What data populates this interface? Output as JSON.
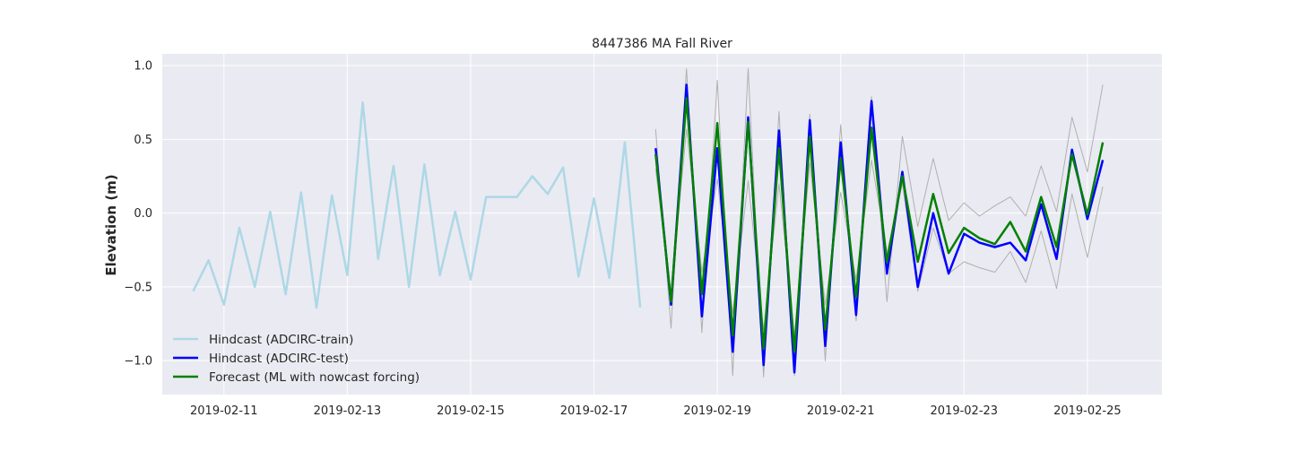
{
  "chart_data": {
    "type": "line",
    "title": "8447386 MA Fall River",
    "xlabel": "",
    "ylabel": "Elevation (m)",
    "x_ticks": [
      "2019-02-11",
      "2019-02-13",
      "2019-02-15",
      "2019-02-17",
      "2019-02-19",
      "2019-02-21",
      "2019-02-23",
      "2019-02-25"
    ],
    "y_ticks": [
      "−1.0",
      "−0.5",
      "0.0",
      "0.5",
      "1.0"
    ],
    "xlim": [
      "2019-02-10T00:00",
      "2019-02-26T05:00"
    ],
    "ylim": [
      -1.23,
      1.08
    ],
    "grid": true,
    "legend_position": "lower-left",
    "series": [
      {
        "name": "Hindcast (ADCIRC-train)",
        "color": "#add8e6",
        "x": [
          "2019-02-10T12:00",
          "2019-02-10T18:00",
          "2019-02-11T00:00",
          "2019-02-11T06:00",
          "2019-02-11T12:00",
          "2019-02-11T18:00",
          "2019-02-12T00:00",
          "2019-02-12T06:00",
          "2019-02-12T12:00",
          "2019-02-12T18:00",
          "2019-02-13T00:00",
          "2019-02-13T06:00",
          "2019-02-13T12:00",
          "2019-02-13T18:00",
          "2019-02-14T00:00",
          "2019-02-14T06:00",
          "2019-02-14T12:00",
          "2019-02-14T18:00",
          "2019-02-15T00:00",
          "2019-02-15T06:00",
          "2019-02-15T12:00",
          "2019-02-15T18:00",
          "2019-02-16T00:00",
          "2019-02-16T06:00",
          "2019-02-16T12:00",
          "2019-02-16T18:00",
          "2019-02-17T00:00",
          "2019-02-17T06:00",
          "2019-02-17T12:00",
          "2019-02-17T18:00"
        ],
        "values": [
          -0.53,
          -0.32,
          -0.62,
          -0.1,
          -0.5,
          0.01,
          -0.55,
          0.14,
          -0.64,
          0.12,
          -0.42,
          0.75,
          -0.31,
          0.32,
          -0.5,
          0.33,
          -0.42,
          0.01,
          -0.45,
          0.11,
          0.11,
          0.11,
          0.25,
          0.13,
          0.31,
          -0.43,
          0.1,
          -0.44,
          0.48,
          -0.64
        ]
      },
      {
        "name": "Hindcast (ADCIRC-test)",
        "color": "#0000ff",
        "x": [
          "2019-02-18T00:00",
          "2019-02-18T06:00",
          "2019-02-18T12:00",
          "2019-02-18T18:00",
          "2019-02-19T00:00",
          "2019-02-19T06:00",
          "2019-02-19T12:00",
          "2019-02-19T18:00",
          "2019-02-20T00:00",
          "2019-02-20T06:00",
          "2019-02-20T12:00",
          "2019-02-20T18:00",
          "2019-02-21T00:00",
          "2019-02-21T06:00",
          "2019-02-21T12:00",
          "2019-02-21T18:00",
          "2019-02-22T00:00",
          "2019-02-22T06:00",
          "2019-02-22T12:00",
          "2019-02-22T18:00",
          "2019-02-23T00:00",
          "2019-02-23T06:00",
          "2019-02-23T12:00",
          "2019-02-23T18:00",
          "2019-02-24T00:00",
          "2019-02-24T06:00",
          "2019-02-24T12:00",
          "2019-02-24T18:00",
          "2019-02-25T00:00",
          "2019-02-25T06:00"
        ],
        "values": [
          0.44,
          -0.62,
          0.87,
          -0.7,
          0.44,
          -0.94,
          0.65,
          -1.03,
          0.56,
          -1.08,
          0.63,
          -0.9,
          0.48,
          -0.69,
          0.76,
          -0.41,
          0.28,
          -0.5,
          0.0,
          -0.41,
          -0.14,
          -0.2,
          -0.23,
          -0.2,
          -0.32,
          0.06,
          -0.31,
          0.43,
          -0.04,
          0.36
        ]
      },
      {
        "name": "Forecast (ML with nowcast forcing)",
        "color": "#008000",
        "x": [
          "2019-02-18T00:00",
          "2019-02-18T06:00",
          "2019-02-18T12:00",
          "2019-02-18T18:00",
          "2019-02-19T00:00",
          "2019-02-19T06:00",
          "2019-02-19T12:00",
          "2019-02-19T18:00",
          "2019-02-20T00:00",
          "2019-02-20T06:00",
          "2019-02-20T12:00",
          "2019-02-20T18:00",
          "2019-02-21T00:00",
          "2019-02-21T06:00",
          "2019-02-21T12:00",
          "2019-02-21T18:00",
          "2019-02-22T00:00",
          "2019-02-22T06:00",
          "2019-02-22T12:00",
          "2019-02-22T18:00",
          "2019-02-23T00:00",
          "2019-02-23T06:00",
          "2019-02-23T12:00",
          "2019-02-23T18:00",
          "2019-02-24T00:00",
          "2019-02-24T06:00",
          "2019-02-24T12:00",
          "2019-02-24T18:00",
          "2019-02-25T00:00",
          "2019-02-25T06:00"
        ],
        "values": [
          0.4,
          -0.6,
          0.78,
          -0.55,
          0.61,
          -0.83,
          0.62,
          -0.92,
          0.44,
          -0.94,
          0.52,
          -0.79,
          0.37,
          -0.57,
          0.58,
          -0.33,
          0.25,
          -0.33,
          0.13,
          -0.27,
          -0.1,
          -0.17,
          -0.21,
          -0.06,
          -0.26,
          0.11,
          -0.23,
          0.4,
          -0.01,
          0.48
        ]
      },
      {
        "name": "",
        "color": "#b0b0b0",
        "x": [
          "2019-02-18T00:00",
          "2019-02-18T06:00",
          "2019-02-18T12:00",
          "2019-02-18T18:00",
          "2019-02-19T00:00",
          "2019-02-19T06:00",
          "2019-02-19T12:00",
          "2019-02-19T18:00",
          "2019-02-20T00:00",
          "2019-02-20T06:00",
          "2019-02-20T12:00",
          "2019-02-20T18:00",
          "2019-02-21T00:00",
          "2019-02-21T06:00",
          "2019-02-21T12:00",
          "2019-02-21T18:00",
          "2019-02-22T00:00",
          "2019-02-22T06:00",
          "2019-02-22T12:00",
          "2019-02-22T18:00",
          "2019-02-23T00:00",
          "2019-02-23T06:00",
          "2019-02-23T12:00",
          "2019-02-23T18:00",
          "2019-02-24T00:00",
          "2019-02-24T06:00",
          "2019-02-24T12:00",
          "2019-02-24T18:00",
          "2019-02-25T00:00",
          "2019-02-25T06:00"
        ],
        "values": [
          0.57,
          -0.78,
          0.98,
          -0.81,
          0.9,
          -1.1,
          0.98,
          -1.11,
          0.69,
          -1.1,
          0.67,
          -1.0,
          0.6,
          -0.73,
          0.79,
          -0.6,
          0.52,
          -0.09,
          0.37,
          -0.05,
          0.07,
          -0.02,
          0.05,
          0.11,
          -0.02,
          0.32,
          0.01,
          0.65,
          0.28,
          0.87
        ]
      },
      {
        "name": "",
        "color": "#b0b0b0",
        "x": [
          "2019-02-18T00:00",
          "2019-02-18T06:00",
          "2019-02-18T12:00",
          "2019-02-18T18:00",
          "2019-02-19T00:00",
          "2019-02-19T06:00",
          "2019-02-19T12:00",
          "2019-02-19T18:00",
          "2019-02-20T00:00",
          "2019-02-20T06:00",
          "2019-02-20T12:00",
          "2019-02-20T18:00",
          "2019-02-21T00:00",
          "2019-02-21T06:00",
          "2019-02-21T12:00",
          "2019-02-21T18:00",
          "2019-02-22T00:00",
          "2019-02-22T06:00",
          "2019-02-22T12:00",
          "2019-02-22T18:00",
          "2019-02-23T00:00",
          "2019-02-23T06:00",
          "2019-02-23T12:00",
          "2019-02-23T18:00",
          "2019-02-24T00:00",
          "2019-02-24T06:00",
          "2019-02-24T12:00",
          "2019-02-24T18:00",
          "2019-02-25T00:00",
          "2019-02-25T06:00"
        ],
        "values": [
          0.3,
          -0.55,
          0.57,
          -0.4,
          0.23,
          -0.68,
          0.22,
          -0.79,
          0.2,
          -0.83,
          0.34,
          -0.62,
          0.14,
          -0.45,
          0.36,
          -0.27,
          0.2,
          -0.53,
          -0.1,
          -0.41,
          -0.33,
          -0.37,
          -0.4,
          -0.26,
          -0.47,
          -0.12,
          -0.51,
          0.13,
          -0.3,
          0.18
        ]
      }
    ]
  }
}
